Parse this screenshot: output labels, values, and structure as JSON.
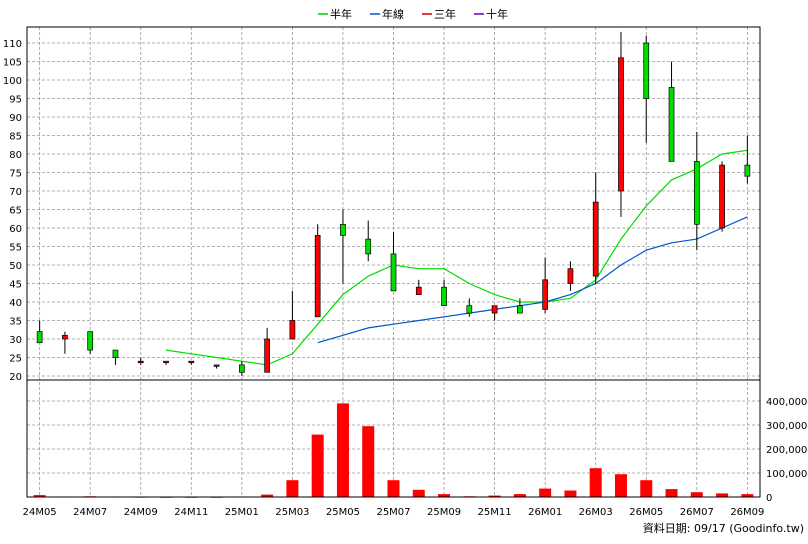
{
  "chart_data": {
    "type": "candlestick",
    "colors": {
      "up": "#ff0000",
      "down": "#00dd00",
      "volume": "#ff0000",
      "ma_half_year": "#00dd00",
      "ma_year": "#0055cc",
      "ma_three_year": "#cc0000",
      "ma_ten_year": "#6600cc",
      "grid": "#999999",
      "axis": "#000000"
    },
    "legend": [
      {
        "label": "半年",
        "color": "#00cc00"
      },
      {
        "label": "年線",
        "color": "#0055cc"
      },
      {
        "label": "三年",
        "color": "#cc0000"
      },
      {
        "label": "十年",
        "color": "#6600cc"
      }
    ],
    "price_axis": {
      "min": 20,
      "max": 110,
      "ticks": [
        20,
        25,
        30,
        35,
        40,
        45,
        50,
        55,
        60,
        65,
        70,
        75,
        80,
        85,
        90,
        95,
        100,
        105,
        110
      ]
    },
    "volume_axis": {
      "min": 0,
      "max": 400000,
      "ticks": [
        0,
        100000,
        200000,
        300000,
        400000
      ],
      "tick_labels": [
        "0",
        "100,000",
        "200,000",
        "300,000",
        "400,000"
      ]
    },
    "x_labels": [
      "24M05",
      "24M07",
      "24M09",
      "24M11",
      "25M01",
      "25M03",
      "25M05",
      "25M07",
      "25M09",
      "25M11",
      "26M01",
      "26M03",
      "26M05",
      "26M07",
      "26M09"
    ],
    "candles": [
      {
        "period": "24M05",
        "open": 32,
        "high": 35,
        "low": 29,
        "close": 29,
        "volume": 8000
      },
      {
        "period": "24M06",
        "open": 30,
        "high": 32,
        "low": 26,
        "close": 31,
        "volume": 2000
      },
      {
        "period": "24M07",
        "open": 32,
        "high": 32,
        "low": 26,
        "close": 27,
        "volume": 3000
      },
      {
        "period": "24M08",
        "open": 27,
        "high": 27,
        "low": 23,
        "close": 25,
        "volume": 2000
      },
      {
        "period": "24M09",
        "open": 24,
        "high": 25,
        "low": 23,
        "close": 24,
        "volume": 1500
      },
      {
        "period": "24M10",
        "open": 24,
        "high": 24,
        "low": 23,
        "close": 24,
        "volume": 1000
      },
      {
        "period": "24M11",
        "open": 24,
        "high": 24,
        "low": 23,
        "close": 24,
        "volume": 1000
      },
      {
        "period": "24M12",
        "open": 23,
        "high": 23,
        "low": 22,
        "close": 23,
        "volume": 1000
      },
      {
        "period": "25M01",
        "open": 23,
        "high": 24,
        "low": 20,
        "close": 21,
        "volume": 2000
      },
      {
        "period": "25M02",
        "open": 21,
        "high": 33,
        "low": 21,
        "close": 30,
        "volume": 10000
      },
      {
        "period": "25M03",
        "open": 30,
        "high": 43,
        "low": 30,
        "close": 35,
        "volume": 70000
      },
      {
        "period": "25M04",
        "open": 36,
        "high": 61,
        "low": 36,
        "close": 58,
        "volume": 260000
      },
      {
        "period": "25M05",
        "open": 61,
        "high": 65,
        "low": 45,
        "close": 58,
        "volume": 390000
      },
      {
        "period": "25M06",
        "open": 57,
        "high": 62,
        "low": 51,
        "close": 53,
        "volume": 295000
      },
      {
        "period": "25M07",
        "open": 53,
        "high": 59,
        "low": 43,
        "close": 43,
        "volume": 70000
      },
      {
        "period": "25M08",
        "open": 42,
        "high": 46,
        "low": 42,
        "close": 44,
        "volume": 30000
      },
      {
        "period": "25M09",
        "open": 44,
        "high": 46,
        "low": 39,
        "close": 39,
        "volume": 12000
      },
      {
        "period": "25M10",
        "open": 39,
        "high": 41,
        "low": 36,
        "close": 37,
        "volume": 3000
      },
      {
        "period": "25M11",
        "open": 37,
        "high": 39,
        "low": 35,
        "close": 39,
        "volume": 6000
      },
      {
        "period": "25M12",
        "open": 39,
        "high": 41,
        "low": 37,
        "close": 37,
        "volume": 12000
      },
      {
        "period": "26M01",
        "open": 38,
        "high": 52,
        "low": 37,
        "close": 46,
        "volume": 35000
      },
      {
        "period": "26M02",
        "open": 45,
        "high": 51,
        "low": 43,
        "close": 49,
        "volume": 27000
      },
      {
        "period": "26M03",
        "open": 47,
        "high": 75,
        "low": 45,
        "close": 67,
        "volume": 120000
      },
      {
        "period": "26M04",
        "open": 70,
        "high": 113,
        "low": 63,
        "close": 106,
        "volume": 95000
      },
      {
        "period": "26M05",
        "open": 110,
        "high": 112,
        "low": 83,
        "close": 95,
        "volume": 70000
      },
      {
        "period": "26M06",
        "open": 98,
        "high": 105,
        "low": 78,
        "close": 78,
        "volume": 33000
      },
      {
        "period": "26M07",
        "open": 78,
        "high": 86,
        "low": 54,
        "close": 61,
        "volume": 20000
      },
      {
        "period": "26M08",
        "open": 60,
        "high": 78,
        "low": 59,
        "close": 77,
        "volume": 15000
      },
      {
        "period": "26M09",
        "open": 77,
        "high": 85,
        "low": 72,
        "close": 74,
        "volume": 12000
      }
    ],
    "ma_half_year": [
      {
        "period": "24M10",
        "value": 27
      },
      {
        "period": "24M11",
        "value": 26
      },
      {
        "period": "24M12",
        "value": 25
      },
      {
        "period": "25M01",
        "value": 24
      },
      {
        "period": "25M02",
        "value": 23
      },
      {
        "period": "25M03",
        "value": 26
      },
      {
        "period": "25M04",
        "value": 34
      },
      {
        "period": "25M05",
        "value": 42
      },
      {
        "period": "25M06",
        "value": 47
      },
      {
        "period": "25M07",
        "value": 50
      },
      {
        "period": "25M08",
        "value": 49
      },
      {
        "period": "25M09",
        "value": 49
      },
      {
        "period": "25M10",
        "value": 45
      },
      {
        "period": "25M11",
        "value": 42
      },
      {
        "period": "25M12",
        "value": 40
      },
      {
        "period": "26M01",
        "value": 40
      },
      {
        "period": "26M02",
        "value": 41
      },
      {
        "period": "26M03",
        "value": 46
      },
      {
        "period": "26M04",
        "value": 57
      },
      {
        "period": "26M05",
        "value": 66
      },
      {
        "period": "26M06",
        "value": 73
      },
      {
        "period": "26M07",
        "value": 76
      },
      {
        "period": "26M08",
        "value": 80
      },
      {
        "period": "26M09",
        "value": 81
      }
    ],
    "ma_year": [
      {
        "period": "25M04",
        "value": 29
      },
      {
        "period": "25M05",
        "value": 31
      },
      {
        "period": "25M06",
        "value": 33
      },
      {
        "period": "25M07",
        "value": 34
      },
      {
        "period": "25M08",
        "value": 35
      },
      {
        "period": "25M09",
        "value": 36
      },
      {
        "period": "25M10",
        "value": 37
      },
      {
        "period": "25M11",
        "value": 38
      },
      {
        "period": "25M12",
        "value": 39
      },
      {
        "period": "26M01",
        "value": 40
      },
      {
        "period": "26M02",
        "value": 42
      },
      {
        "period": "26M03",
        "value": 45
      },
      {
        "period": "26M04",
        "value": 50
      },
      {
        "period": "26M05",
        "value": 54
      },
      {
        "period": "26M06",
        "value": 56
      },
      {
        "period": "26M07",
        "value": 57
      },
      {
        "period": "26M08",
        "value": 60
      },
      {
        "period": "26M09",
        "value": 63
      }
    ],
    "footer": "資料日期: 09/17  (Goodinfo.tw)"
  }
}
